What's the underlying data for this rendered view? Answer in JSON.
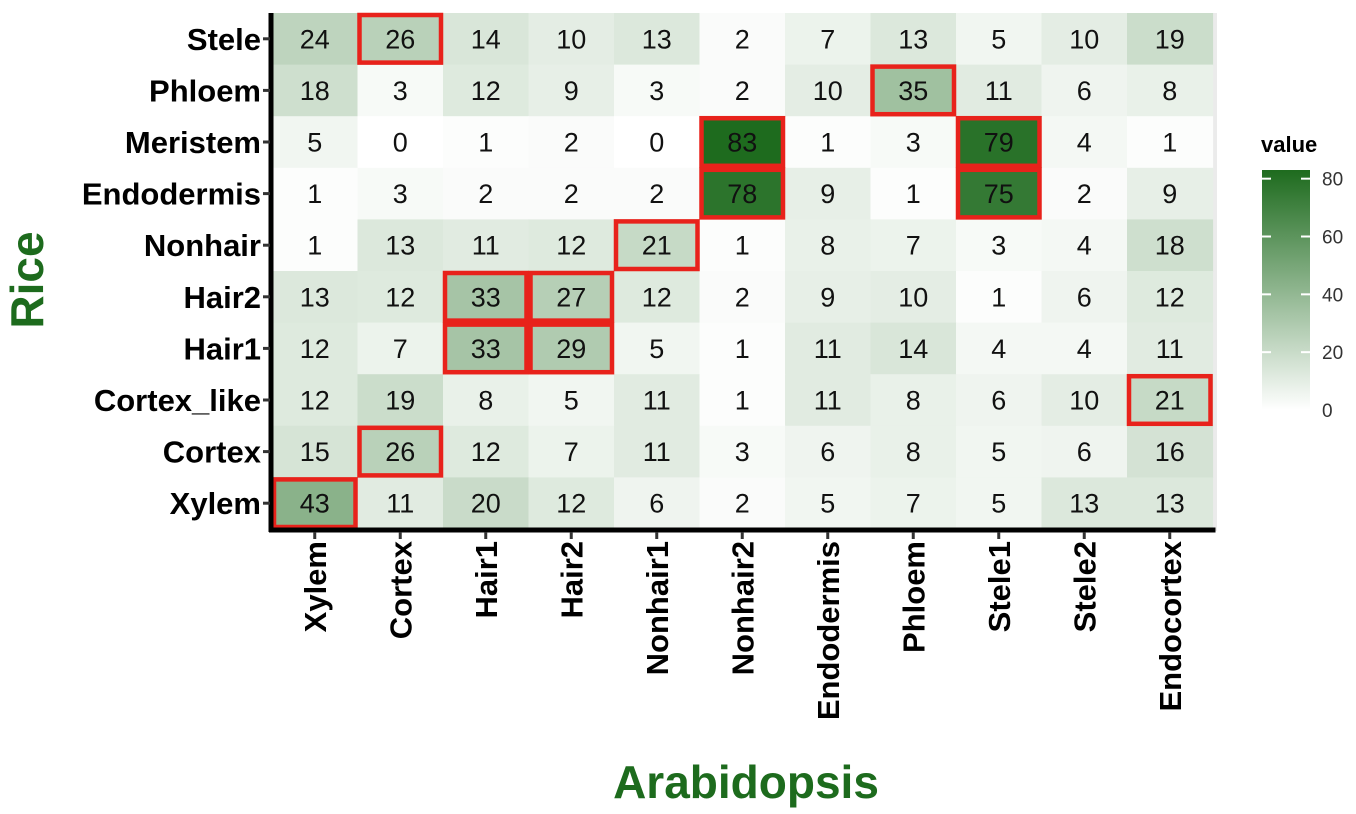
{
  "chart_data": {
    "type": "heatmap",
    "xlabel": "Arabidopsis",
    "ylabel": "Rice",
    "x_categories": [
      "Xylem",
      "Cortex",
      "Hair1",
      "Hair2",
      "Nonhair1",
      "Nonhair2",
      "Endodermis",
      "Phloem",
      "Stele1",
      "Stele2",
      "Endocortex"
    ],
    "y_categories": [
      "Stele",
      "Phloem",
      "Meristem",
      "Endodermis",
      "Nonhair",
      "Hair2",
      "Hair1",
      "Cortex_like",
      "Cortex",
      "Xylem"
    ],
    "values": [
      [
        24,
        26,
        14,
        10,
        13,
        2,
        7,
        13,
        5,
        10,
        19
      ],
      [
        18,
        3,
        12,
        9,
        3,
        2,
        10,
        35,
        11,
        6,
        8
      ],
      [
        5,
        0,
        1,
        2,
        0,
        83,
        1,
        3,
        79,
        4,
        1
      ],
      [
        1,
        3,
        2,
        2,
        2,
        78,
        9,
        1,
        75,
        2,
        9
      ],
      [
        1,
        13,
        11,
        12,
        21,
        1,
        8,
        7,
        3,
        4,
        18
      ],
      [
        13,
        12,
        33,
        27,
        12,
        2,
        9,
        10,
        1,
        6,
        12
      ],
      [
        12,
        7,
        33,
        29,
        5,
        1,
        11,
        14,
        4,
        4,
        11
      ],
      [
        12,
        19,
        8,
        5,
        11,
        1,
        11,
        8,
        6,
        10,
        21
      ],
      [
        15,
        26,
        12,
        7,
        11,
        3,
        6,
        8,
        5,
        6,
        16
      ],
      [
        43,
        11,
        20,
        12,
        6,
        2,
        5,
        7,
        5,
        13,
        13
      ]
    ],
    "highlighted_cells": [
      {
        "row": "Stele",
        "col": "Cortex"
      },
      {
        "row": "Phloem",
        "col": "Phloem"
      },
      {
        "row": "Meristem",
        "col": "Nonhair2"
      },
      {
        "row": "Meristem",
        "col": "Stele1"
      },
      {
        "row": "Endodermis",
        "col": "Nonhair2"
      },
      {
        "row": "Endodermis",
        "col": "Stele1"
      },
      {
        "row": "Nonhair",
        "col": "Nonhair1"
      },
      {
        "row": "Hair2",
        "col": "Hair1"
      },
      {
        "row": "Hair2",
        "col": "Hair2"
      },
      {
        "row": "Hair1",
        "col": "Hair1"
      },
      {
        "row": "Hair1",
        "col": "Hair2"
      },
      {
        "row": "Cortex_like",
        "col": "Endocortex"
      },
      {
        "row": "Cortex",
        "col": "Cortex"
      },
      {
        "row": "Xylem",
        "col": "Xylem"
      }
    ],
    "color_scale": {
      "low": "#ffffff",
      "high": "#1e6b1e",
      "min": 0,
      "max": 83
    },
    "legend": {
      "title": "value",
      "ticks": [
        0,
        20,
        40,
        60,
        80
      ],
      "placement": "right"
    },
    "grid": true,
    "highlight_color": "#e8221b",
    "title_color": "#1d6b1d"
  }
}
